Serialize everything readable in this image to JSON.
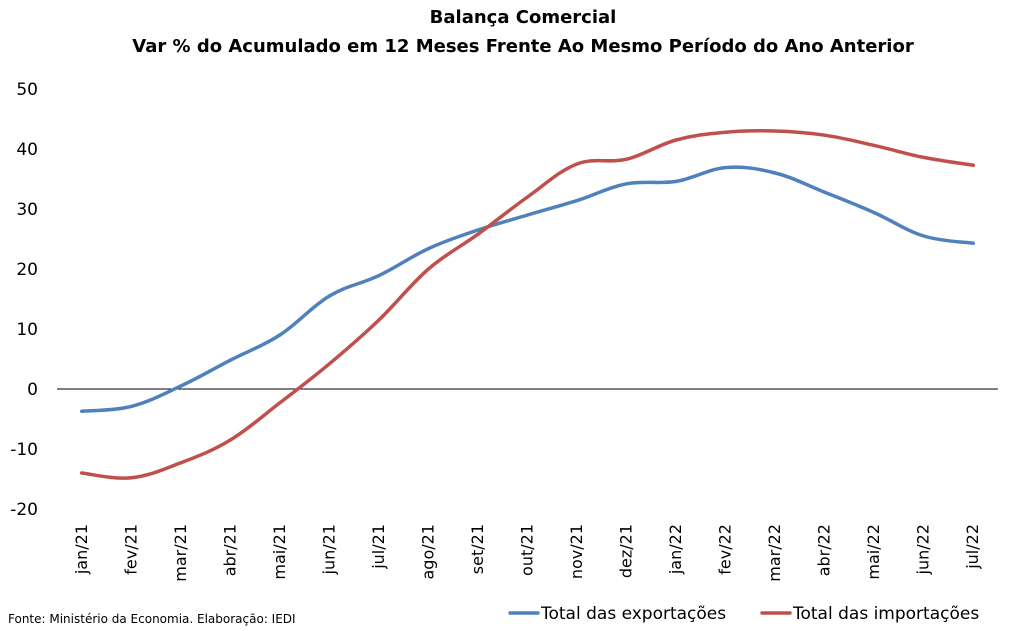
{
  "chart_data": {
    "type": "line",
    "title": "Balança Comercial",
    "subtitle": "Var % do Acumulado em 12 Meses Frente Ao Mesmo Período do Ano Anterior",
    "categories": [
      "jan/21",
      "fev/21",
      "mar/21",
      "abr/21",
      "mai/21",
      "jun/21",
      "jul/21",
      "ago/21",
      "set/21",
      "out/21",
      "nov/21",
      "dez/21",
      "jan/22",
      "fev/22",
      "mar/22",
      "abr/22",
      "mai/22",
      "jun/22",
      "jul/22"
    ],
    "ylim": [
      -20,
      50
    ],
    "yticks": [
      "50",
      "40",
      "30",
      "20",
      "10",
      "0",
      "-10",
      "-20"
    ],
    "yticks_values": [
      50,
      40,
      30,
      20,
      10,
      0,
      -10,
      -20
    ],
    "grid": false,
    "zero_line": true,
    "legend_position": "bottom-right",
    "series": [
      {
        "name": "Total das exportações",
        "color": "#4f81bd",
        "values": [
          -3.7,
          -2.9,
          0.5,
          4.8,
          9.0,
          15.5,
          18.9,
          23.4,
          26.5,
          29.0,
          31.4,
          34.2,
          34.6,
          36.9,
          36.0,
          32.8,
          29.4,
          25.5,
          24.3
        ]
      },
      {
        "name": "Total das importações",
        "color": "#c0504d",
        "values": [
          -14.0,
          -14.8,
          -12.3,
          -8.5,
          -2.3,
          4.2,
          11.5,
          20.0,
          25.8,
          32.0,
          37.5,
          38.3,
          41.5,
          42.8,
          43.0,
          42.3,
          40.6,
          38.6,
          37.3
        ]
      }
    ],
    "source": "Fonte: Ministério da Economia. Elaboração: IEDI"
  }
}
